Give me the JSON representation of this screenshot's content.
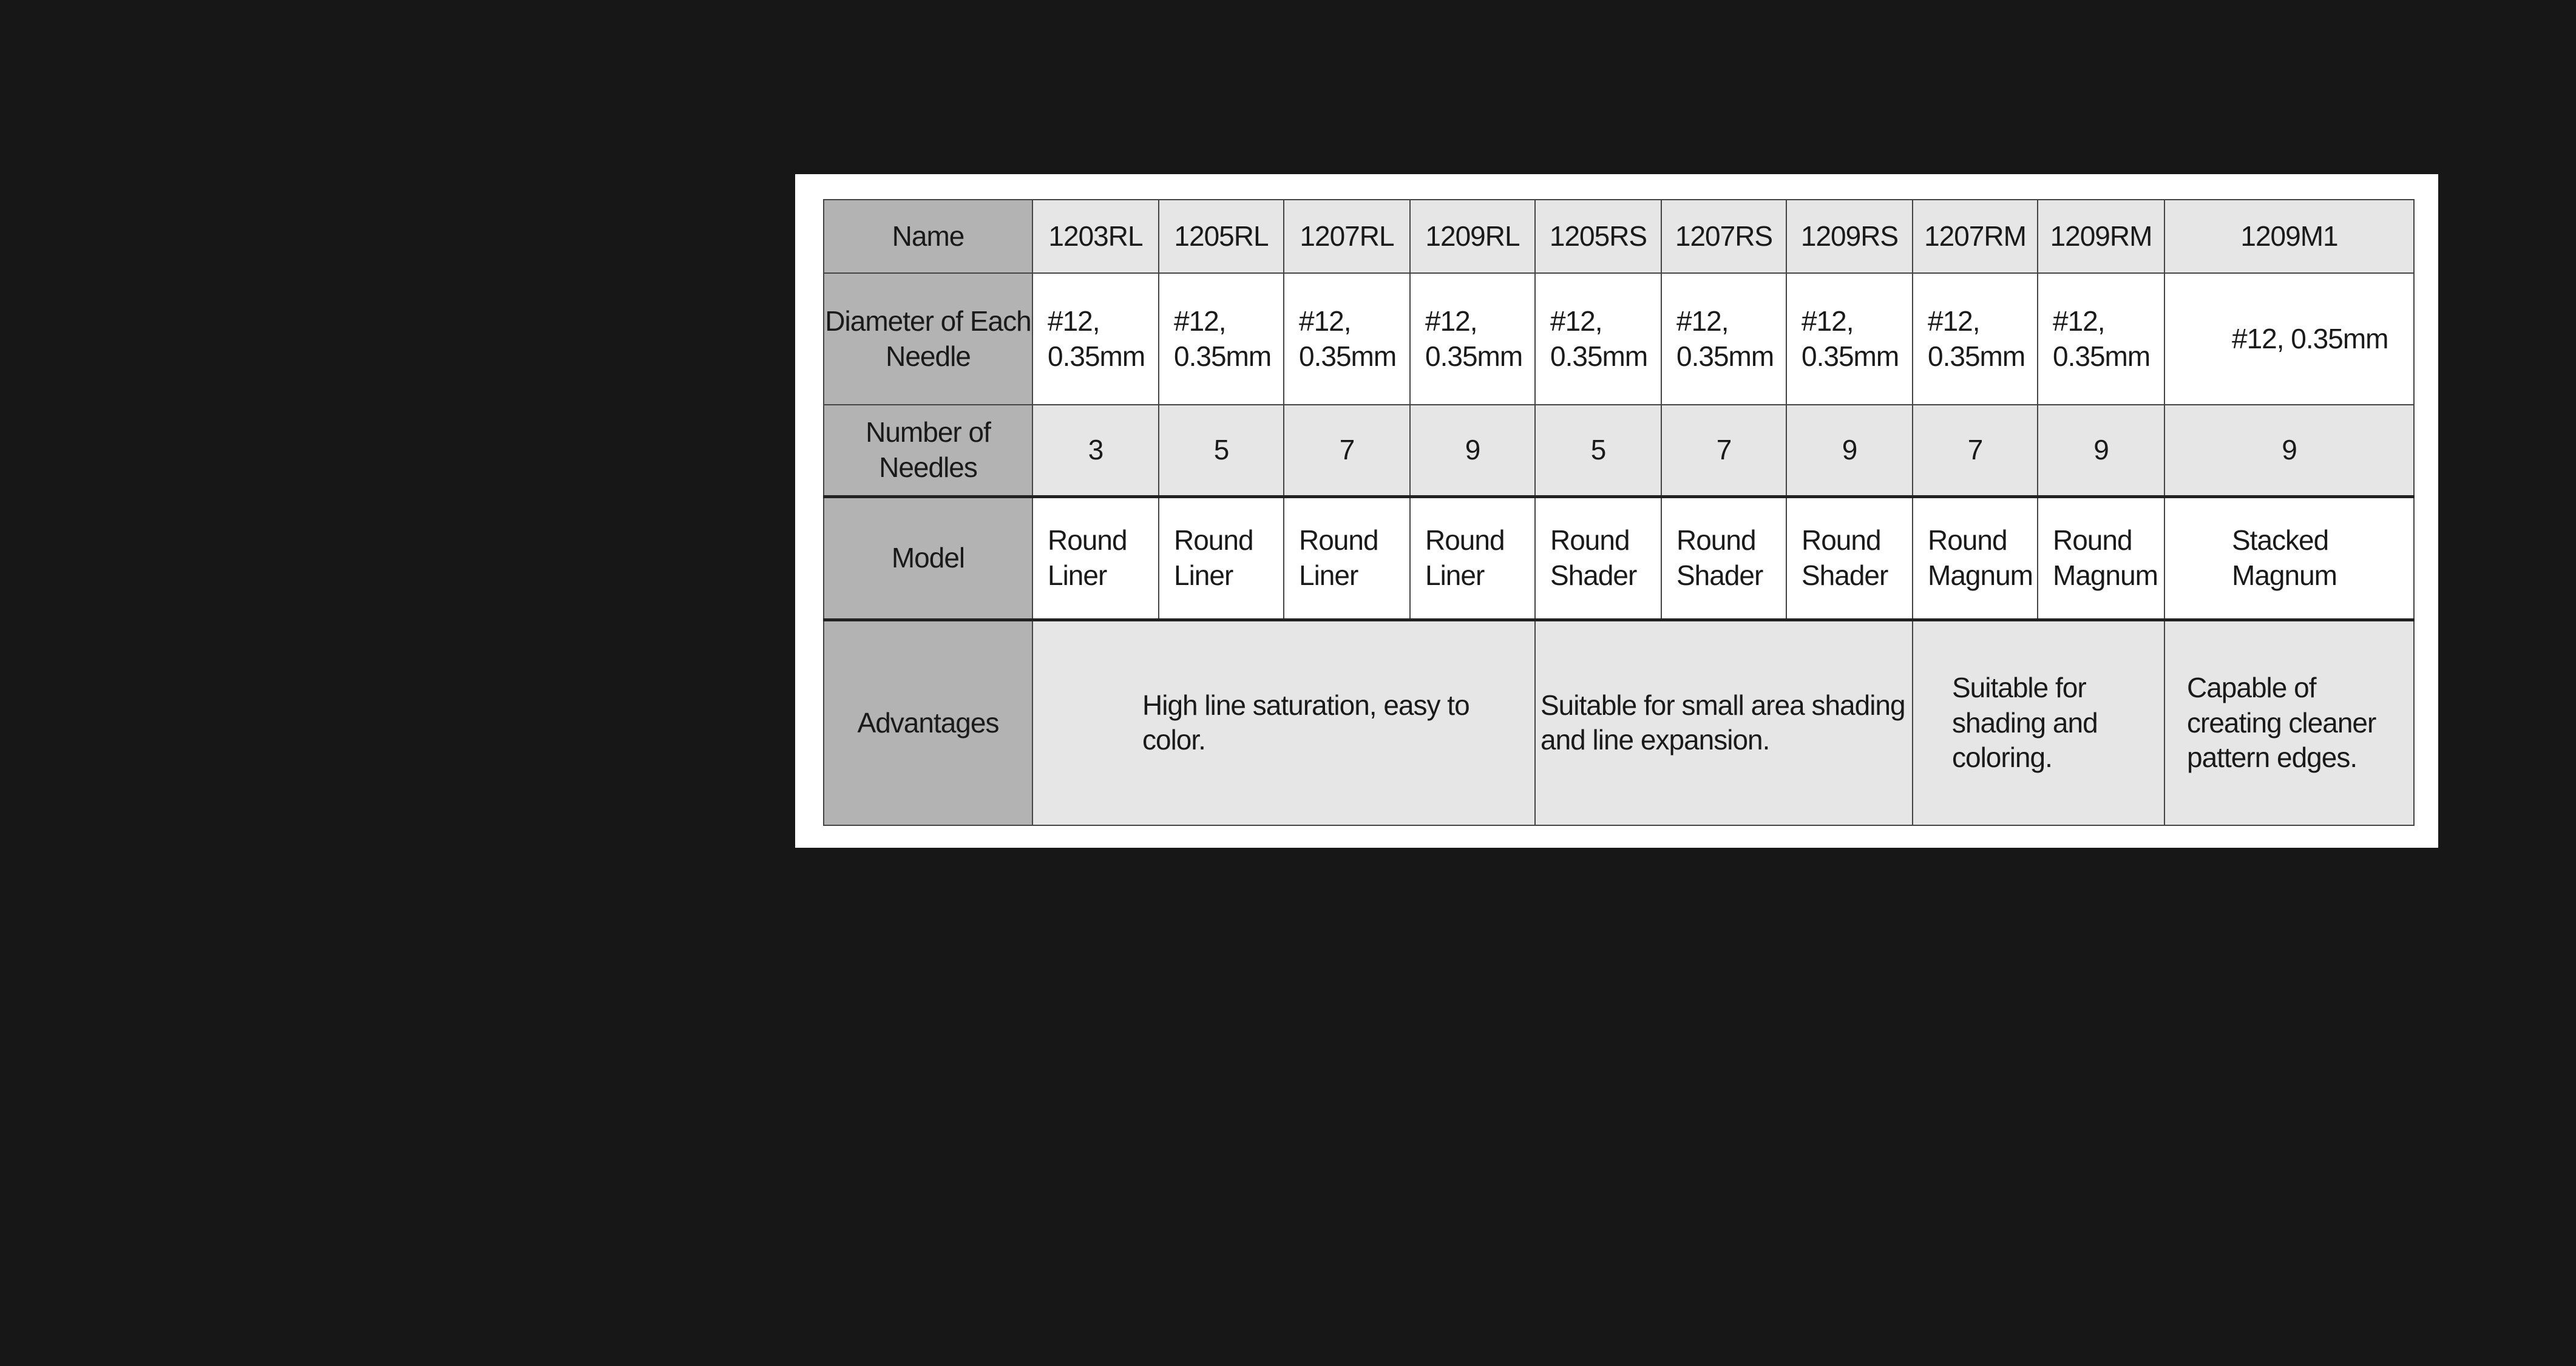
{
  "row_headers": {
    "name": "Name",
    "diameter": "Diameter of Each Needle",
    "number": "Number of Needles",
    "model": "Model",
    "advantages": "Advantages"
  },
  "products": [
    {
      "name": "1203RL",
      "diameter": "#12, 0.35mm",
      "needles": "3",
      "model": "Round Liner"
    },
    {
      "name": "1205RL",
      "diameter": "#12, 0.35mm",
      "needles": "5",
      "model": "Round Liner"
    },
    {
      "name": "1207RL",
      "diameter": "#12, 0.35mm",
      "needles": "7",
      "model": "Round Liner"
    },
    {
      "name": "1209RL",
      "diameter": "#12, 0.35mm",
      "needles": "9",
      "model": "Round Liner"
    },
    {
      "name": "1205RS",
      "diameter": "#12, 0.35mm",
      "needles": "5",
      "model": "Round Shader"
    },
    {
      "name": "1207RS",
      "diameter": "#12, 0.35mm",
      "needles": "7",
      "model": "Round Shader"
    },
    {
      "name": "1209RS",
      "diameter": "#12, 0.35mm",
      "needles": "9",
      "model": "Round Shader"
    },
    {
      "name": "1207RM",
      "diameter": "#12, 0.35mm",
      "needles": "7",
      "model": "Round Magnum"
    },
    {
      "name": "1209RM",
      "diameter": "#12, 0.35mm",
      "needles": "9",
      "model": "Round Magnum"
    },
    {
      "name": "1209M1",
      "diameter": "#12, 0.35mm",
      "needles": "9",
      "model": "Stacked Magnum"
    }
  ],
  "advantages": [
    "High line saturation, easy to color.",
    "Suitable for small area shading and line expansion.",
    "Suitable for shading and coloring.",
    "Capable of creating cleaner pattern edges."
  ],
  "colors": {
    "background": "#171717",
    "header_column": "#b3b3b3",
    "shaded_row": "#e6e6e6"
  }
}
